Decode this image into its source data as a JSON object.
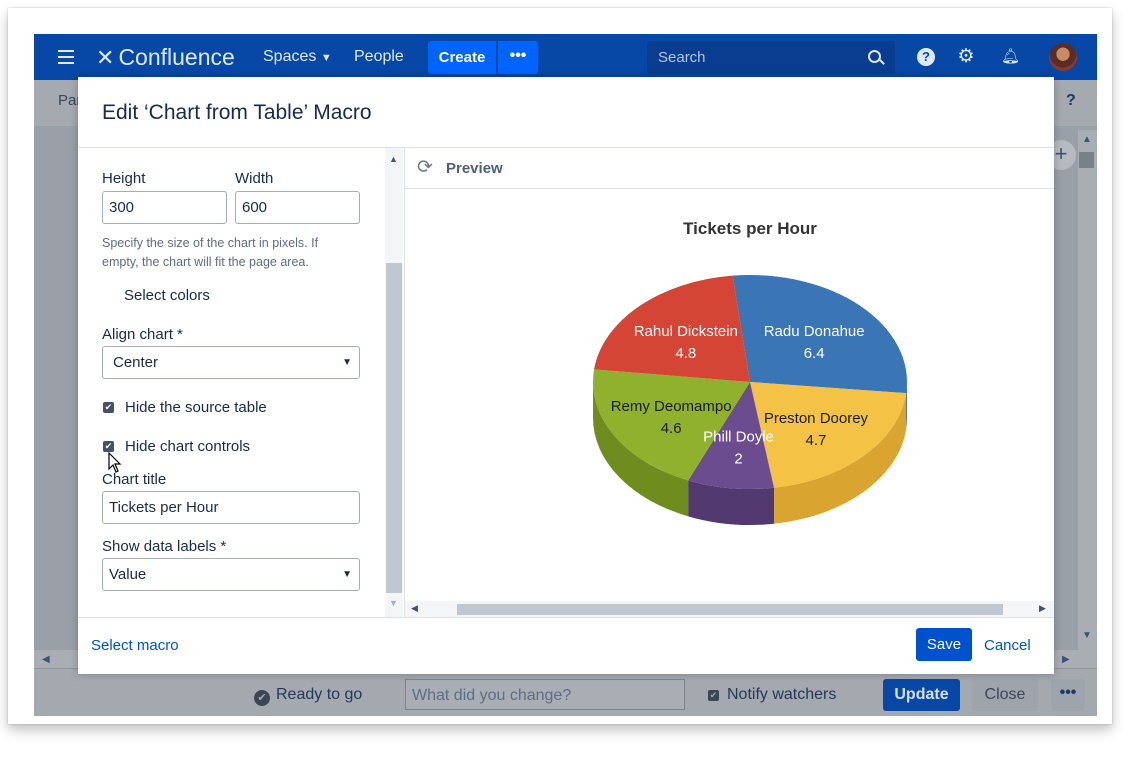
{
  "nav": {
    "app_name": "Confluence",
    "spaces_label": "Spaces",
    "people_label": "People",
    "create_label": "Create",
    "more_label": "•••",
    "search_placeholder": "Search"
  },
  "background": {
    "breadcrumb": "Par",
    "help_label": "?",
    "footer": {
      "ready_label": "Ready to go",
      "change_placeholder": "What did you change?",
      "notify_label": "Notify watchers",
      "update_label": "Update",
      "close_label": "Close",
      "more_label": "•••"
    }
  },
  "dialog": {
    "title": "Edit ‘Chart from Table’ Macro",
    "form": {
      "height_label": "Height",
      "height_value": "300",
      "width_label": "Width",
      "width_value": "600",
      "size_help": "Specify the size of the chart in pixels. If empty, the chart will fit the page area.",
      "select_colors_label": "Select colors",
      "align_label": "Align chart *",
      "align_value": "Center",
      "hide_source_label": "Hide the source table",
      "hide_source_checked": true,
      "hide_controls_label": "Hide chart controls",
      "hide_controls_checked": true,
      "chart_title_label": "Chart title",
      "chart_title_value": "Tickets per Hour",
      "data_labels_label": "Show data labels *",
      "data_labels_value": "Value"
    },
    "preview_label": "Preview",
    "footer": {
      "select_macro_label": "Select macro",
      "save_label": "Save",
      "cancel_label": "Cancel"
    }
  },
  "chart_data": {
    "type": "pie",
    "title": "Tickets per Hour",
    "categories": [
      "Radu Donahue",
      "Preston Doorey",
      "Phill Doyle",
      "Remy Deomampo",
      "Rahul Dickstein"
    ],
    "values": [
      6.4,
      4.7,
      2,
      4.6,
      4.8
    ],
    "colors": [
      "#3a76b5",
      "#f4c244",
      "#6b4d8f",
      "#8fb12d",
      "#d44535"
    ],
    "side_colors": [
      "#2c5e93",
      "#d9a530",
      "#523a70",
      "#6f8d1f",
      "#ad3428"
    ]
  }
}
